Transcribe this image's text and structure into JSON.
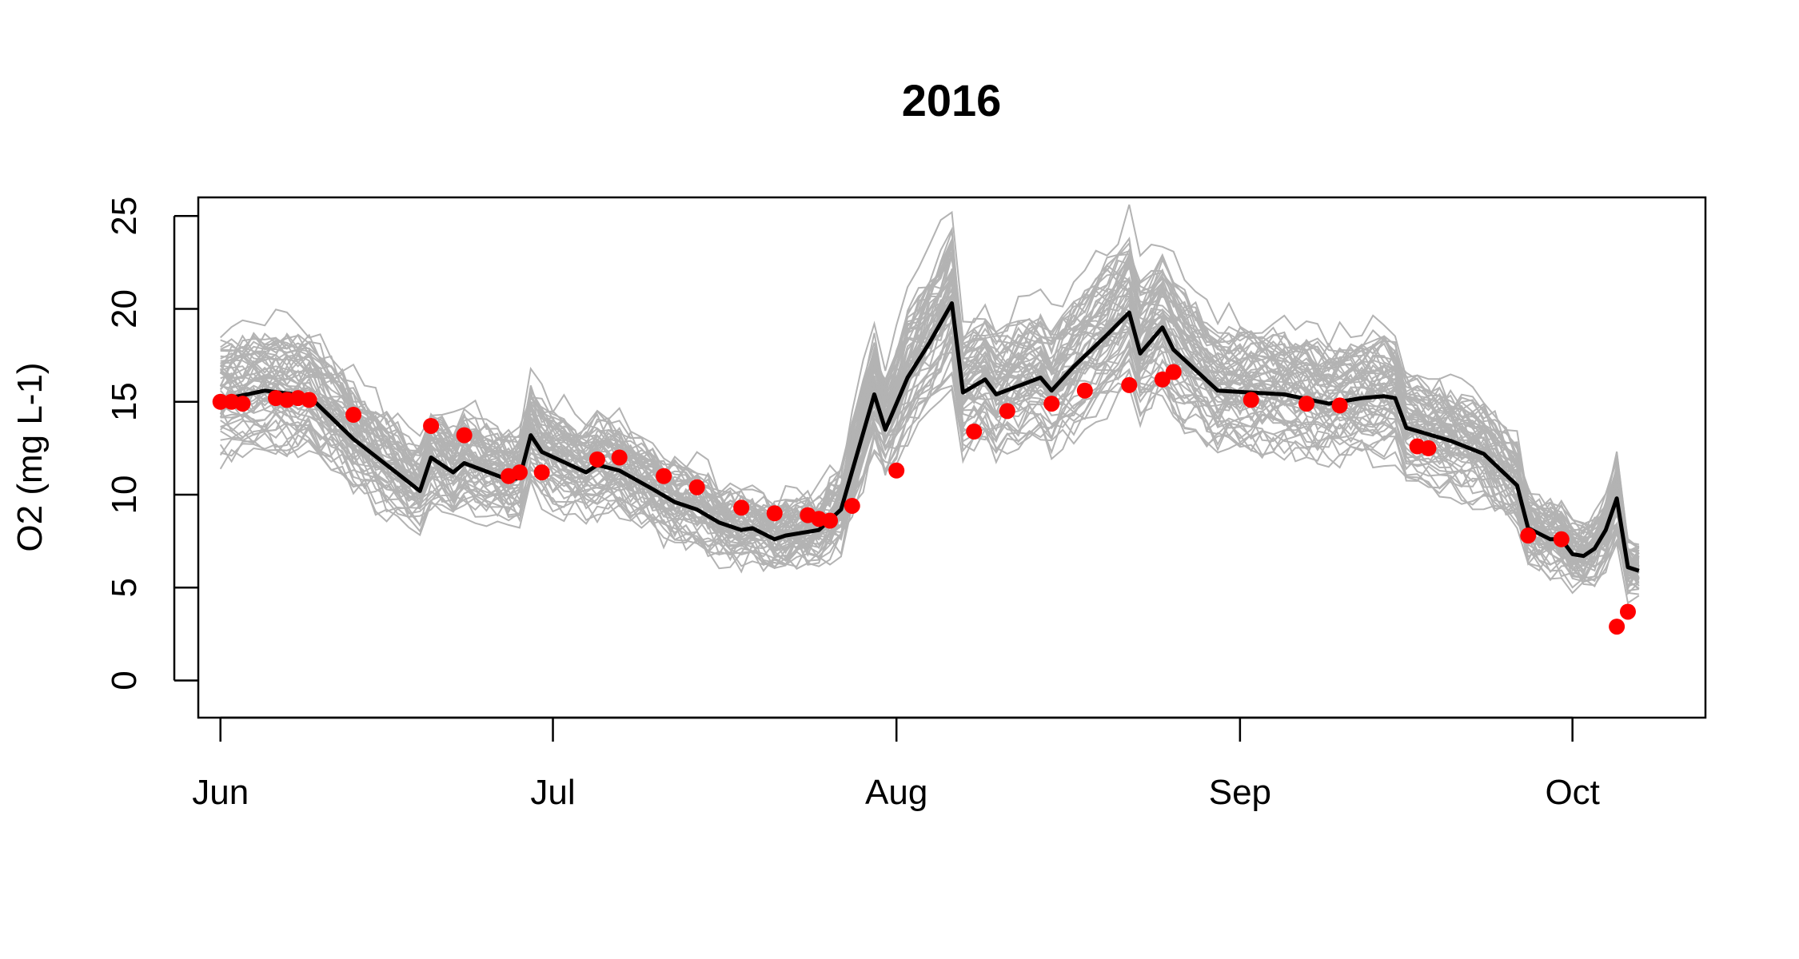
{
  "chart_data": {
    "type": "line",
    "title": "2016",
    "xlabel": "",
    "ylabel": "O2 (mg L-1)",
    "ylim": [
      -2,
      26
    ],
    "xlim": [
      "2016-05-30",
      "2016-10-13"
    ],
    "x_ticks": [
      {
        "date": "2016-06-01",
        "label": "Jun"
      },
      {
        "date": "2016-07-01",
        "label": "Jul"
      },
      {
        "date": "2016-08-01",
        "label": "Aug"
      },
      {
        "date": "2016-09-01",
        "label": "Sep"
      },
      {
        "date": "2016-10-01",
        "label": "Oct"
      }
    ],
    "y_ticks": [
      0,
      5,
      10,
      15,
      20,
      25
    ],
    "colors": {
      "ensemble": "#b3b3b3",
      "mean": "#000000",
      "observed": "#ff0000"
    },
    "series": [
      {
        "type": "line",
        "color": "#000000",
        "points": [
          [
            "2016-06-01",
            15.1
          ],
          [
            "2016-06-05",
            15.6
          ],
          [
            "2016-06-09",
            15.3
          ],
          [
            "2016-06-13",
            13.0
          ],
          [
            "2016-06-19",
            10.2
          ],
          [
            "2016-06-20",
            12.0
          ],
          [
            "2016-06-22",
            11.2
          ],
          [
            "2016-06-23",
            11.7
          ],
          [
            "2016-06-27",
            10.8
          ],
          [
            "2016-06-28",
            10.9
          ],
          [
            "2016-06-29",
            13.2
          ],
          [
            "2016-06-30",
            12.3
          ],
          [
            "2016-07-04",
            11.2
          ],
          [
            "2016-07-05",
            11.6
          ],
          [
            "2016-07-07",
            11.3
          ],
          [
            "2016-07-10",
            10.3
          ],
          [
            "2016-07-12",
            9.6
          ],
          [
            "2016-07-14",
            9.2
          ],
          [
            "2016-07-16",
            8.5
          ],
          [
            "2016-07-18",
            8.1
          ],
          [
            "2016-07-19",
            8.2
          ],
          [
            "2016-07-21",
            7.6
          ],
          [
            "2016-07-22",
            7.8
          ],
          [
            "2016-07-25",
            8.1
          ],
          [
            "2016-07-27",
            9.2
          ],
          [
            "2016-07-30",
            15.4
          ],
          [
            "2016-07-31",
            13.5
          ],
          [
            "2016-08-02",
            16.3
          ],
          [
            "2016-08-04",
            18.2
          ],
          [
            "2016-08-06",
            20.3
          ],
          [
            "2016-08-07",
            15.5
          ],
          [
            "2016-08-09",
            16.2
          ],
          [
            "2016-08-10",
            15.4
          ],
          [
            "2016-08-14",
            16.3
          ],
          [
            "2016-08-15",
            15.6
          ],
          [
            "2016-08-17",
            16.9
          ],
          [
            "2016-08-20",
            18.6
          ],
          [
            "2016-08-22",
            19.8
          ],
          [
            "2016-08-23",
            17.6
          ],
          [
            "2016-08-25",
            19.0
          ],
          [
            "2016-08-26",
            17.8
          ],
          [
            "2016-08-30",
            15.6
          ],
          [
            "2016-09-05",
            15.4
          ],
          [
            "2016-09-09",
            14.9
          ],
          [
            "2016-09-12",
            15.2
          ],
          [
            "2016-09-14",
            15.3
          ],
          [
            "2016-09-15",
            15.2
          ],
          [
            "2016-09-16",
            13.6
          ],
          [
            "2016-09-20",
            12.9
          ],
          [
            "2016-09-23",
            12.2
          ],
          [
            "2016-09-26",
            10.5
          ],
          [
            "2016-09-27",
            8.2
          ],
          [
            "2016-09-29",
            7.6
          ],
          [
            "2016-09-30",
            7.6
          ],
          [
            "2016-10-01",
            6.8
          ],
          [
            "2016-10-02",
            6.7
          ],
          [
            "2016-10-03",
            7.1
          ],
          [
            "2016-10-04",
            8.1
          ],
          [
            "2016-10-05",
            9.8
          ],
          [
            "2016-10-06",
            6.1
          ],
          [
            "2016-10-07",
            5.9
          ]
        ]
      },
      {
        "type": "scatter",
        "color": "#ff0000",
        "points": [
          [
            "2016-06-01",
            15.0
          ],
          [
            "2016-06-02",
            15.0
          ],
          [
            "2016-06-03",
            14.9
          ],
          [
            "2016-06-06",
            15.2
          ],
          [
            "2016-06-07",
            15.1
          ],
          [
            "2016-06-08",
            15.2
          ],
          [
            "2016-06-09",
            15.1
          ],
          [
            "2016-06-13",
            14.3
          ],
          [
            "2016-06-20",
            13.7
          ],
          [
            "2016-06-23",
            13.2
          ],
          [
            "2016-06-27",
            11.0
          ],
          [
            "2016-06-28",
            11.2
          ],
          [
            "2016-06-30",
            11.2
          ],
          [
            "2016-07-05",
            11.9
          ],
          [
            "2016-07-07",
            12.0
          ],
          [
            "2016-07-11",
            11.0
          ],
          [
            "2016-07-14",
            10.4
          ],
          [
            "2016-07-18",
            9.3
          ],
          [
            "2016-07-21",
            9.0
          ],
          [
            "2016-07-24",
            8.9
          ],
          [
            "2016-07-25",
            8.7
          ],
          [
            "2016-07-26",
            8.6
          ],
          [
            "2016-07-28",
            9.4
          ],
          [
            "2016-08-01",
            11.3
          ],
          [
            "2016-08-08",
            13.4
          ],
          [
            "2016-08-11",
            14.5
          ],
          [
            "2016-08-15",
            14.9
          ],
          [
            "2016-08-18",
            15.6
          ],
          [
            "2016-08-22",
            15.9
          ],
          [
            "2016-08-25",
            16.2
          ],
          [
            "2016-08-26",
            16.6
          ],
          [
            "2016-09-02",
            15.1
          ],
          [
            "2016-09-07",
            14.9
          ],
          [
            "2016-09-10",
            14.8
          ],
          [
            "2016-09-17",
            12.6
          ],
          [
            "2016-09-18",
            12.5
          ],
          [
            "2016-09-27",
            7.8
          ],
          [
            "2016-09-30",
            7.6
          ],
          [
            "2016-10-05",
            2.9
          ],
          [
            "2016-10-06",
            3.7
          ]
        ]
      }
    ]
  }
}
